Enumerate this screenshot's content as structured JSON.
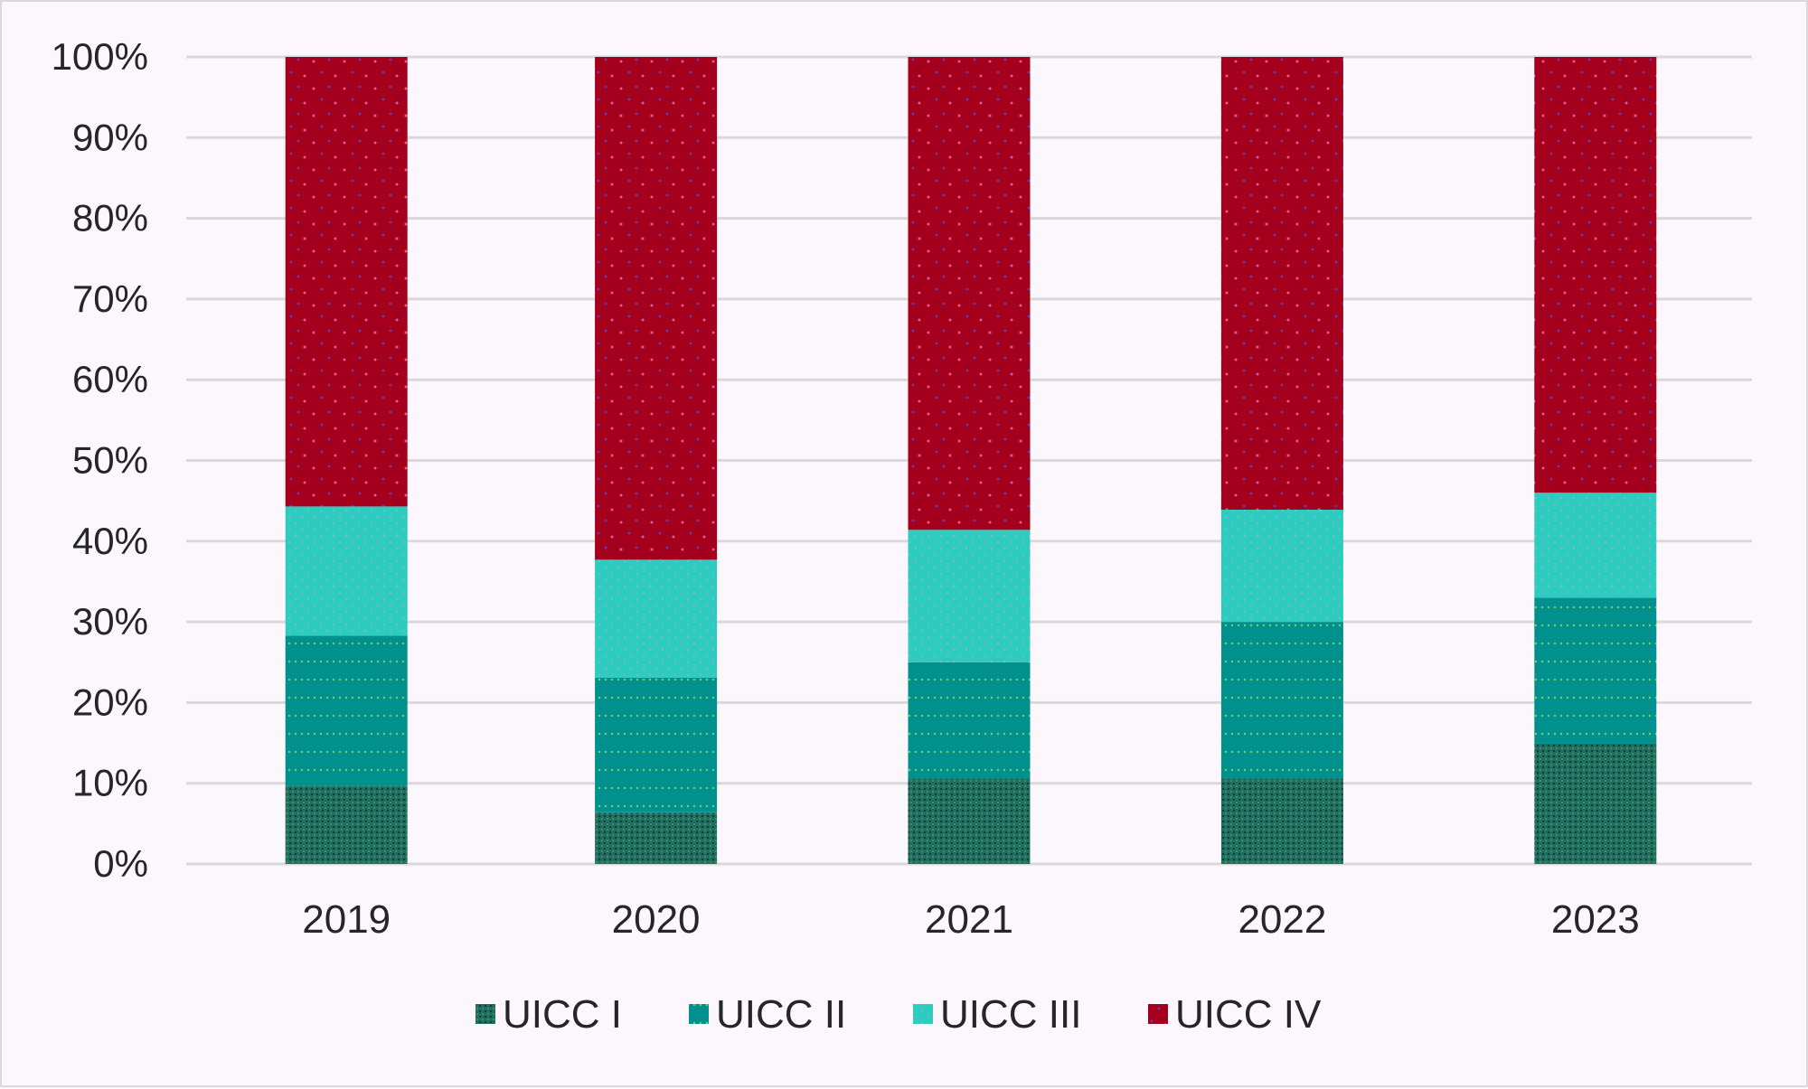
{
  "chart_data": {
    "type": "bar",
    "stacked": true,
    "percent": true,
    "title": "",
    "xlabel": "",
    "ylabel": "",
    "categories": [
      "2019",
      "2020",
      "2021",
      "2022",
      "2023"
    ],
    "series": [
      {
        "name": "UICC I",
        "color": "#1f6e5e",
        "values": [
          9.7,
          6.4,
          10.6,
          10.6,
          14.9
        ]
      },
      {
        "name": "UICC II",
        "color": "#00918f",
        "values": [
          18.6,
          16.7,
          14.4,
          19.4,
          18.1
        ]
      },
      {
        "name": "UICC III",
        "color": "#2ecbc0",
        "values": [
          16.0,
          14.6,
          16.4,
          13.9,
          13.0
        ]
      },
      {
        "name": "UICC IV",
        "color": "#a4001e",
        "values": [
          55.7,
          62.3,
          58.6,
          56.1,
          54.0
        ]
      }
    ],
    "ylim": [
      0,
      100
    ],
    "yticks": [
      "0%",
      "10%",
      "20%",
      "30%",
      "40%",
      "50%",
      "60%",
      "70%",
      "80%",
      "90%",
      "100%"
    ],
    "grid": true,
    "legend": "bottom"
  }
}
